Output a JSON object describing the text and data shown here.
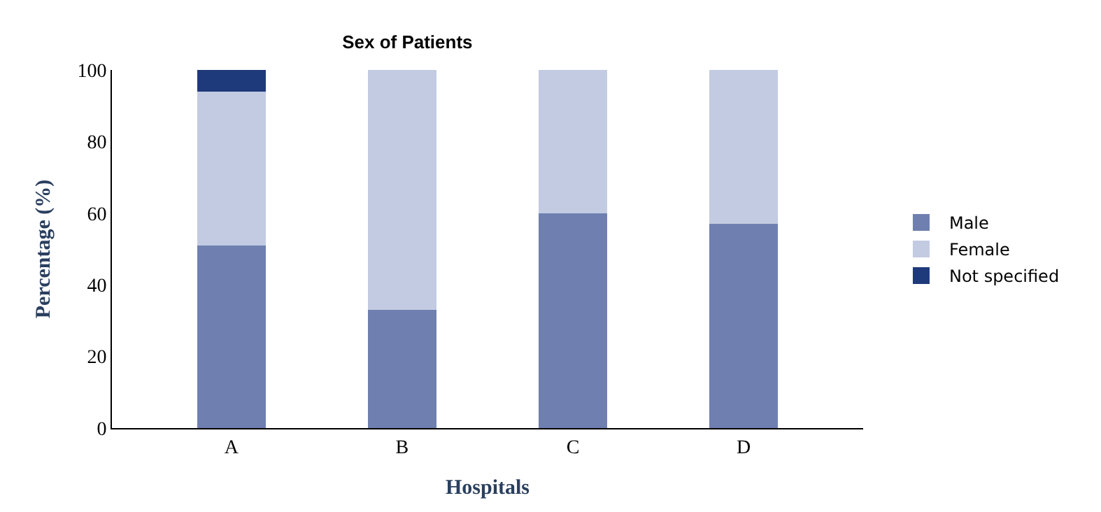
{
  "chart_data": {
    "type": "bar",
    "stacked": true,
    "title": "Sex of Patients",
    "xlabel": "Hospitals",
    "ylabel": "Percentage (%)",
    "categories": [
      "A",
      "B",
      "C",
      "D"
    ],
    "series": [
      {
        "name": "Male",
        "color": "#6f80b0",
        "values": [
          51,
          33,
          60,
          57
        ]
      },
      {
        "name": "Female",
        "color": "#c3cbe2",
        "values": [
          43,
          67,
          40,
          43
        ]
      },
      {
        "name": "Not specified",
        "color": "#1f3a7a",
        "values": [
          6,
          null,
          null,
          null
        ]
      }
    ],
    "ylim": [
      0,
      100
    ],
    "yticks": [
      0,
      20,
      40,
      60,
      80,
      100
    ],
    "legend": "right"
  }
}
